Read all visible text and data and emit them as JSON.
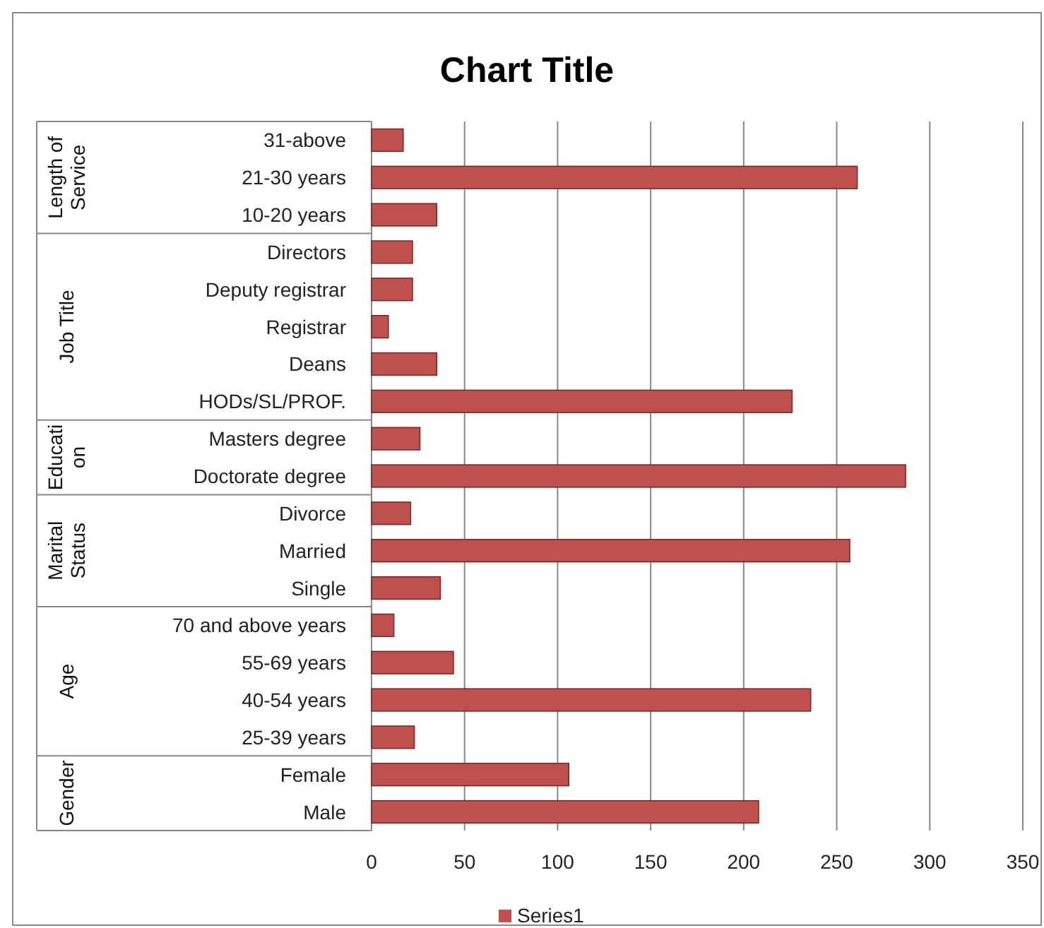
{
  "chart_data": {
    "type": "bar",
    "orientation": "horizontal",
    "title": "Chart Title",
    "categories": [
      "31-above",
      "21-30 years",
      "10-20 years",
      "Directors",
      "Deputy registrar",
      "Registrar",
      "Deans",
      "HODs/SL/PROF.",
      "Masters degree",
      "Doctorate degree",
      "Divorce",
      "Married",
      "Single",
      "70 and above years",
      "55-69 years",
      "40-54 years",
      "25-39 years",
      "Female",
      "Male"
    ],
    "series": [
      {
        "name": "Series1",
        "color": "#c0504d",
        "values": [
          17,
          261,
          35,
          22,
          22,
          9,
          35,
          226,
          26,
          287,
          21,
          257,
          37,
          12,
          44,
          236,
          23,
          106,
          208
        ]
      }
    ],
    "xlim": [
      0,
      350
    ],
    "xticks": [
      0,
      50,
      100,
      150,
      200,
      250,
      300,
      350
    ],
    "grid": "x",
    "legend": "bottom",
    "annotations": [
      "Length of Service",
      "Job Title",
      "Education",
      "Marital Status",
      "Age",
      "Gender"
    ]
  }
}
